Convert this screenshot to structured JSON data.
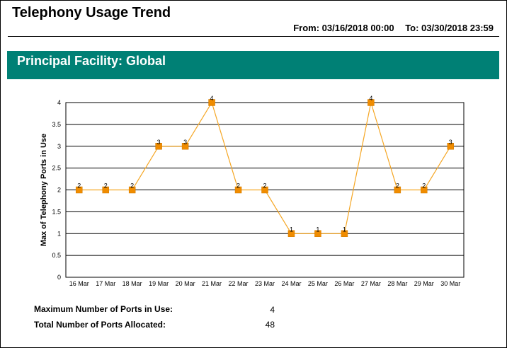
{
  "header": {
    "title": "Telephony Usage Trend",
    "from": "From: 03/16/2018 00:00",
    "to": "To: 03/30/2018 23:59"
  },
  "banner": {
    "text": "Principal Facility: Global"
  },
  "colors": {
    "banner": "#008075",
    "line": "#F5A623",
    "marker": "#F08C00"
  },
  "chart_data": {
    "type": "line",
    "categories": [
      "16 Mar",
      "17 Mar",
      "18 Mar",
      "19 Mar",
      "20 Mar",
      "21 Mar",
      "22 Mar",
      "23 Mar",
      "24 Mar",
      "25 Mar",
      "26 Mar",
      "27 Mar",
      "28 Mar",
      "29 Mar",
      "30 Mar"
    ],
    "values": [
      2,
      2,
      2,
      3,
      3,
      4,
      2,
      2,
      1,
      1,
      1,
      4,
      2,
      2,
      3
    ],
    "ylabel": "Max of Telephony Ports in Use",
    "xlabel": "",
    "ylim": [
      0,
      4
    ],
    "yticks": [
      "0",
      "0.5",
      "1",
      "1.5",
      "2",
      "2.5",
      "3",
      "3.5",
      "4"
    ],
    "grid": "horizontal",
    "data_labels": true,
    "marker": "square"
  },
  "summary": {
    "max_label": "Maximum Number of Ports in Use:",
    "max_value": "4",
    "total_label": "Total Number of Ports Allocated:",
    "total_value": "48"
  }
}
